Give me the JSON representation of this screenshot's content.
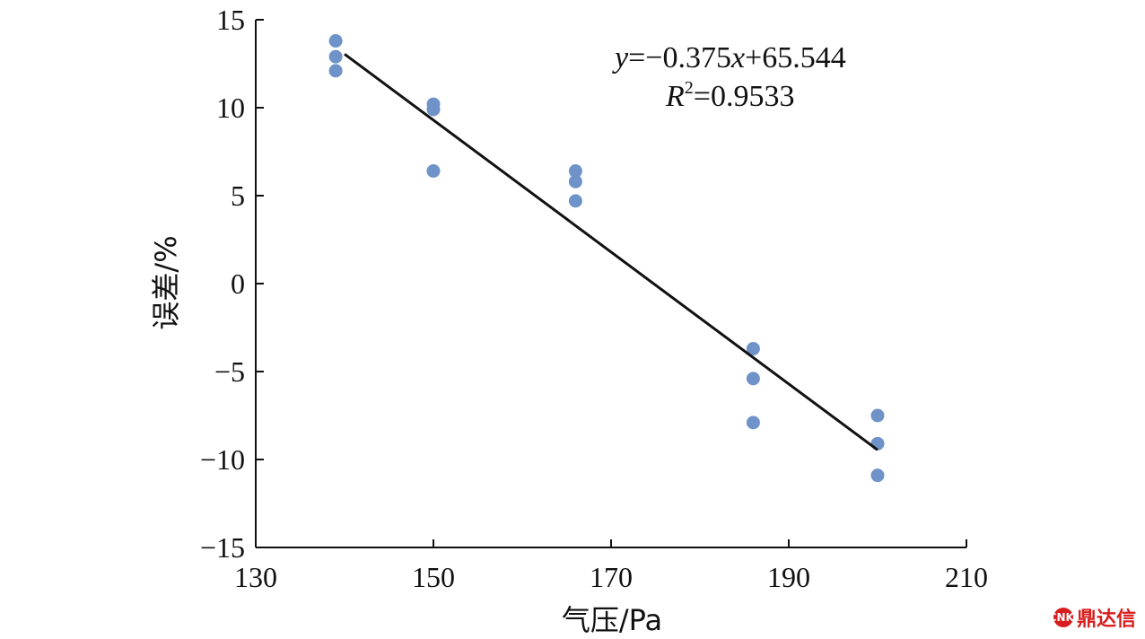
{
  "chart_data": {
    "type": "scatter",
    "xlabel": "气压/Pa",
    "ylabel": "误差/%",
    "xlim": [
      130,
      210
    ],
    "ylim": [
      -15,
      15
    ],
    "x_ticks": [
      130,
      150,
      170,
      190,
      210
    ],
    "y_ticks": [
      15,
      10,
      5,
      0,
      -5,
      -10,
      -15
    ],
    "y_tick_labels": [
      "15",
      "10",
      "5",
      "0",
      "−5",
      "−10",
      "−15"
    ],
    "grid": false,
    "point_color": "#6f93c8",
    "line_color": "#111111",
    "series": [
      {
        "points": [
          [
            139,
            13.8
          ],
          [
            139,
            12.9
          ],
          [
            139,
            12.1
          ],
          [
            150,
            10.2
          ],
          [
            150,
            9.9
          ],
          [
            150,
            6.4
          ],
          [
            166,
            6.4
          ],
          [
            166,
            5.8
          ],
          [
            166,
            4.7
          ],
          [
            186,
            -3.7
          ],
          [
            186,
            -5.4
          ],
          [
            186,
            -7.9
          ],
          [
            200,
            -7.5
          ],
          [
            200,
            -9.1
          ],
          [
            200,
            -10.9
          ]
        ]
      }
    ],
    "fit_line": {
      "slope": -0.375,
      "intercept": 65.544,
      "x_range": [
        140,
        200
      ]
    },
    "annotation": {
      "equation": {
        "y": "y",
        "eq": "=−0.375",
        "x": "x",
        "rest": "+65.544"
      },
      "r2": {
        "r": "R",
        "sup": "2",
        "rest": "=0.9533"
      }
    }
  },
  "watermark": {
    "icon": "CNKI",
    "text": "鼎达信"
  }
}
